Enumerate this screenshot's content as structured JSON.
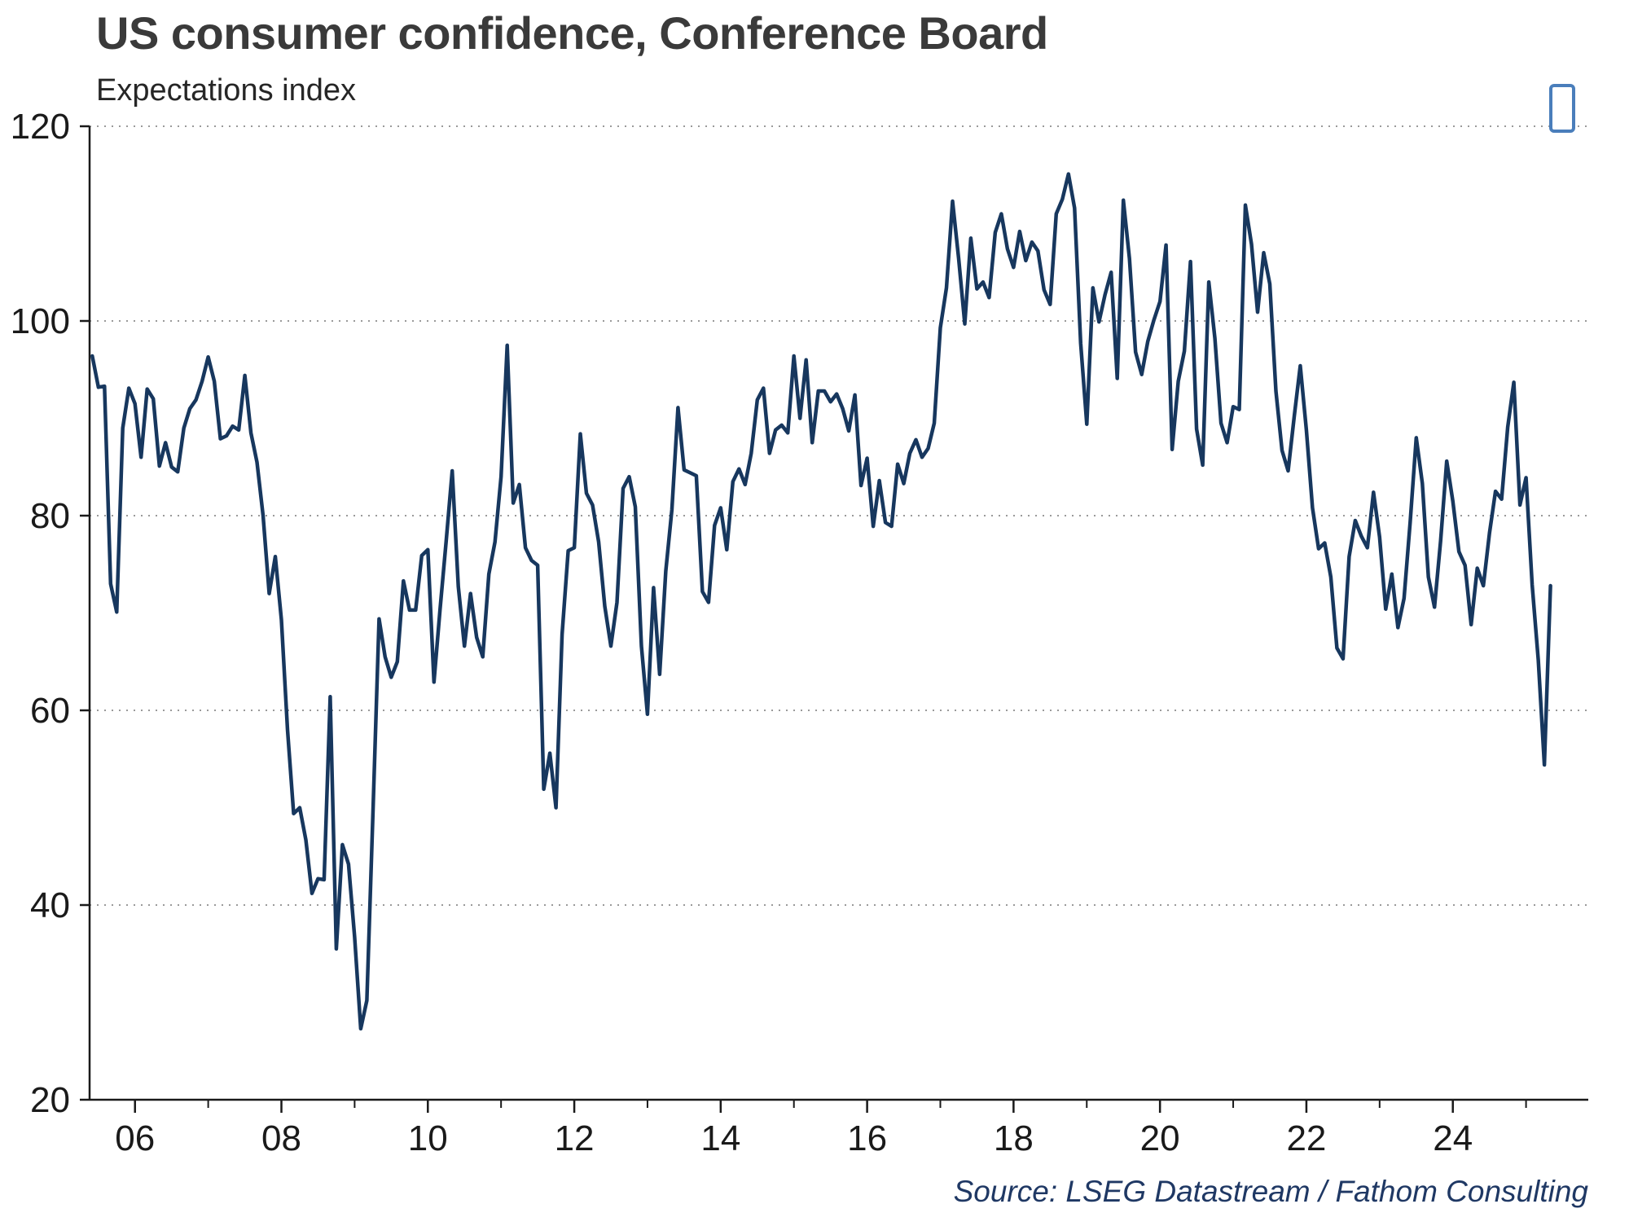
{
  "header": {
    "title": "US consumer confidence, Conference Board",
    "subtitle": "Expectations index"
  },
  "footer": {
    "source": "Source: LSEG Datastream / Fathom Consulting"
  },
  "icons": {
    "logo": "rounded-rectangle-outline"
  },
  "colors": {
    "line": "#17375e",
    "axis": "#1a1a1a",
    "grid": "#8c8c8c",
    "title": "#3a3a3a",
    "source": "#1f3864",
    "logo": "#4a7ebb"
  },
  "chart_data": {
    "type": "line",
    "title": "US consumer confidence, Conference Board",
    "subtitle": "Expectations index",
    "series_name": "Conference Board consumer confidence expectations index",
    "frequency": "monthly",
    "start": "2005-06",
    "end": "2025-05",
    "values": [
      96.4,
      93.2,
      93.3,
      73.0,
      70.1,
      89.0,
      93.1,
      91.5,
      86.0,
      93.0,
      92.0,
      85.1,
      87.5,
      85.0,
      84.5,
      89.0,
      91.0,
      91.9,
      93.8,
      96.3,
      93.8,
      87.9,
      88.2,
      89.2,
      88.8,
      94.4,
      88.5,
      85.5,
      80.0,
      72.0,
      75.8,
      69.3,
      58.0,
      49.4,
      50.0,
      46.7,
      41.2,
      42.7,
      42.6,
      61.4,
      35.5,
      46.2,
      44.2,
      36.7,
      27.3,
      30.2,
      49.5,
      69.4,
      65.5,
      63.4,
      65.0,
      73.3,
      70.3,
      70.3,
      75.9,
      76.5,
      62.9,
      70.4,
      77.4,
      84.6,
      72.7,
      66.6,
      72.0,
      67.5,
      65.5,
      74.0,
      77.3,
      84.0,
      97.5,
      81.3,
      83.2,
      76.7,
      75.4,
      74.9,
      51.9,
      55.6,
      50.0,
      67.8,
      76.4,
      76.7,
      88.4,
      82.3,
      81.1,
      77.3,
      70.7,
      66.6,
      71.1,
      82.8,
      84.0,
      80.9,
      66.6,
      59.6,
      72.6,
      63.7,
      74.3,
      80.6,
      91.1,
      84.7,
      84.4,
      84.1,
      72.2,
      71.1,
      79.0,
      80.8,
      76.5,
      83.5,
      84.8,
      83.2,
      86.4,
      91.9,
      93.1,
      86.4,
      88.8,
      89.3,
      88.5,
      96.4,
      90.0,
      96.0,
      87.5,
      92.8,
      92.8,
      91.7,
      92.5,
      91.0,
      88.7,
      92.4,
      83.1,
      85.9,
      78.9,
      83.6,
      79.3,
      78.9,
      85.3,
      83.3,
      86.4,
      87.8,
      86.0,
      86.9,
      89.5,
      99.3,
      103.4,
      112.3,
      106.4,
      99.7,
      108.5,
      103.3,
      104.0,
      102.4,
      109.1,
      111.0,
      107.4,
      105.5,
      109.2,
      106.2,
      108.1,
      107.2,
      103.2,
      101.7,
      111.0,
      112.5,
      115.1,
      111.6,
      97.7,
      89.4,
      103.4,
      99.9,
      102.7,
      105.0,
      94.1,
      112.4,
      106.4,
      96.8,
      94.5,
      97.9,
      100.1,
      102.0,
      107.8,
      86.8,
      93.8,
      96.9,
      106.1,
      88.9,
      85.2,
      104.0,
      98.2,
      89.5,
      87.5,
      91.2,
      90.9,
      111.9,
      107.9,
      100.9,
      107.0,
      103.8,
      92.8,
      86.7,
      84.6,
      90.2,
      95.4,
      88.8,
      80.8,
      76.6,
      77.2,
      73.7,
      66.4,
      65.3,
      75.8,
      79.5,
      77.9,
      76.7,
      82.4,
      77.8,
      70.4,
      74.0,
      68.5,
      71.5,
      79.3,
      88.0,
      83.3,
      73.7,
      70.6,
      77.4,
      85.6,
      81.5,
      76.3,
      74.9,
      68.8,
      74.6,
      72.8,
      78.2,
      82.5,
      81.7,
      89.1,
      93.7,
      81.1,
      83.9,
      72.9,
      65.2,
      54.4,
      72.8
    ],
    "ylim": [
      20,
      120
    ],
    "xlim": [
      2005.38,
      2025.85
    ],
    "y_ticks": [
      20,
      40,
      60,
      80,
      100,
      120
    ],
    "x_tick_years": [
      2006,
      2008,
      2010,
      2012,
      2014,
      2016,
      2018,
      2020,
      2022,
      2024
    ],
    "x_tick_labels": [
      "06",
      "08",
      "10",
      "12",
      "14",
      "16",
      "18",
      "20",
      "22",
      "24"
    ],
    "grid": "horizontal-dotted",
    "legend": "none",
    "line_color": "#17375e",
    "source": "Source: LSEG Datastream / Fathom Consulting"
  }
}
